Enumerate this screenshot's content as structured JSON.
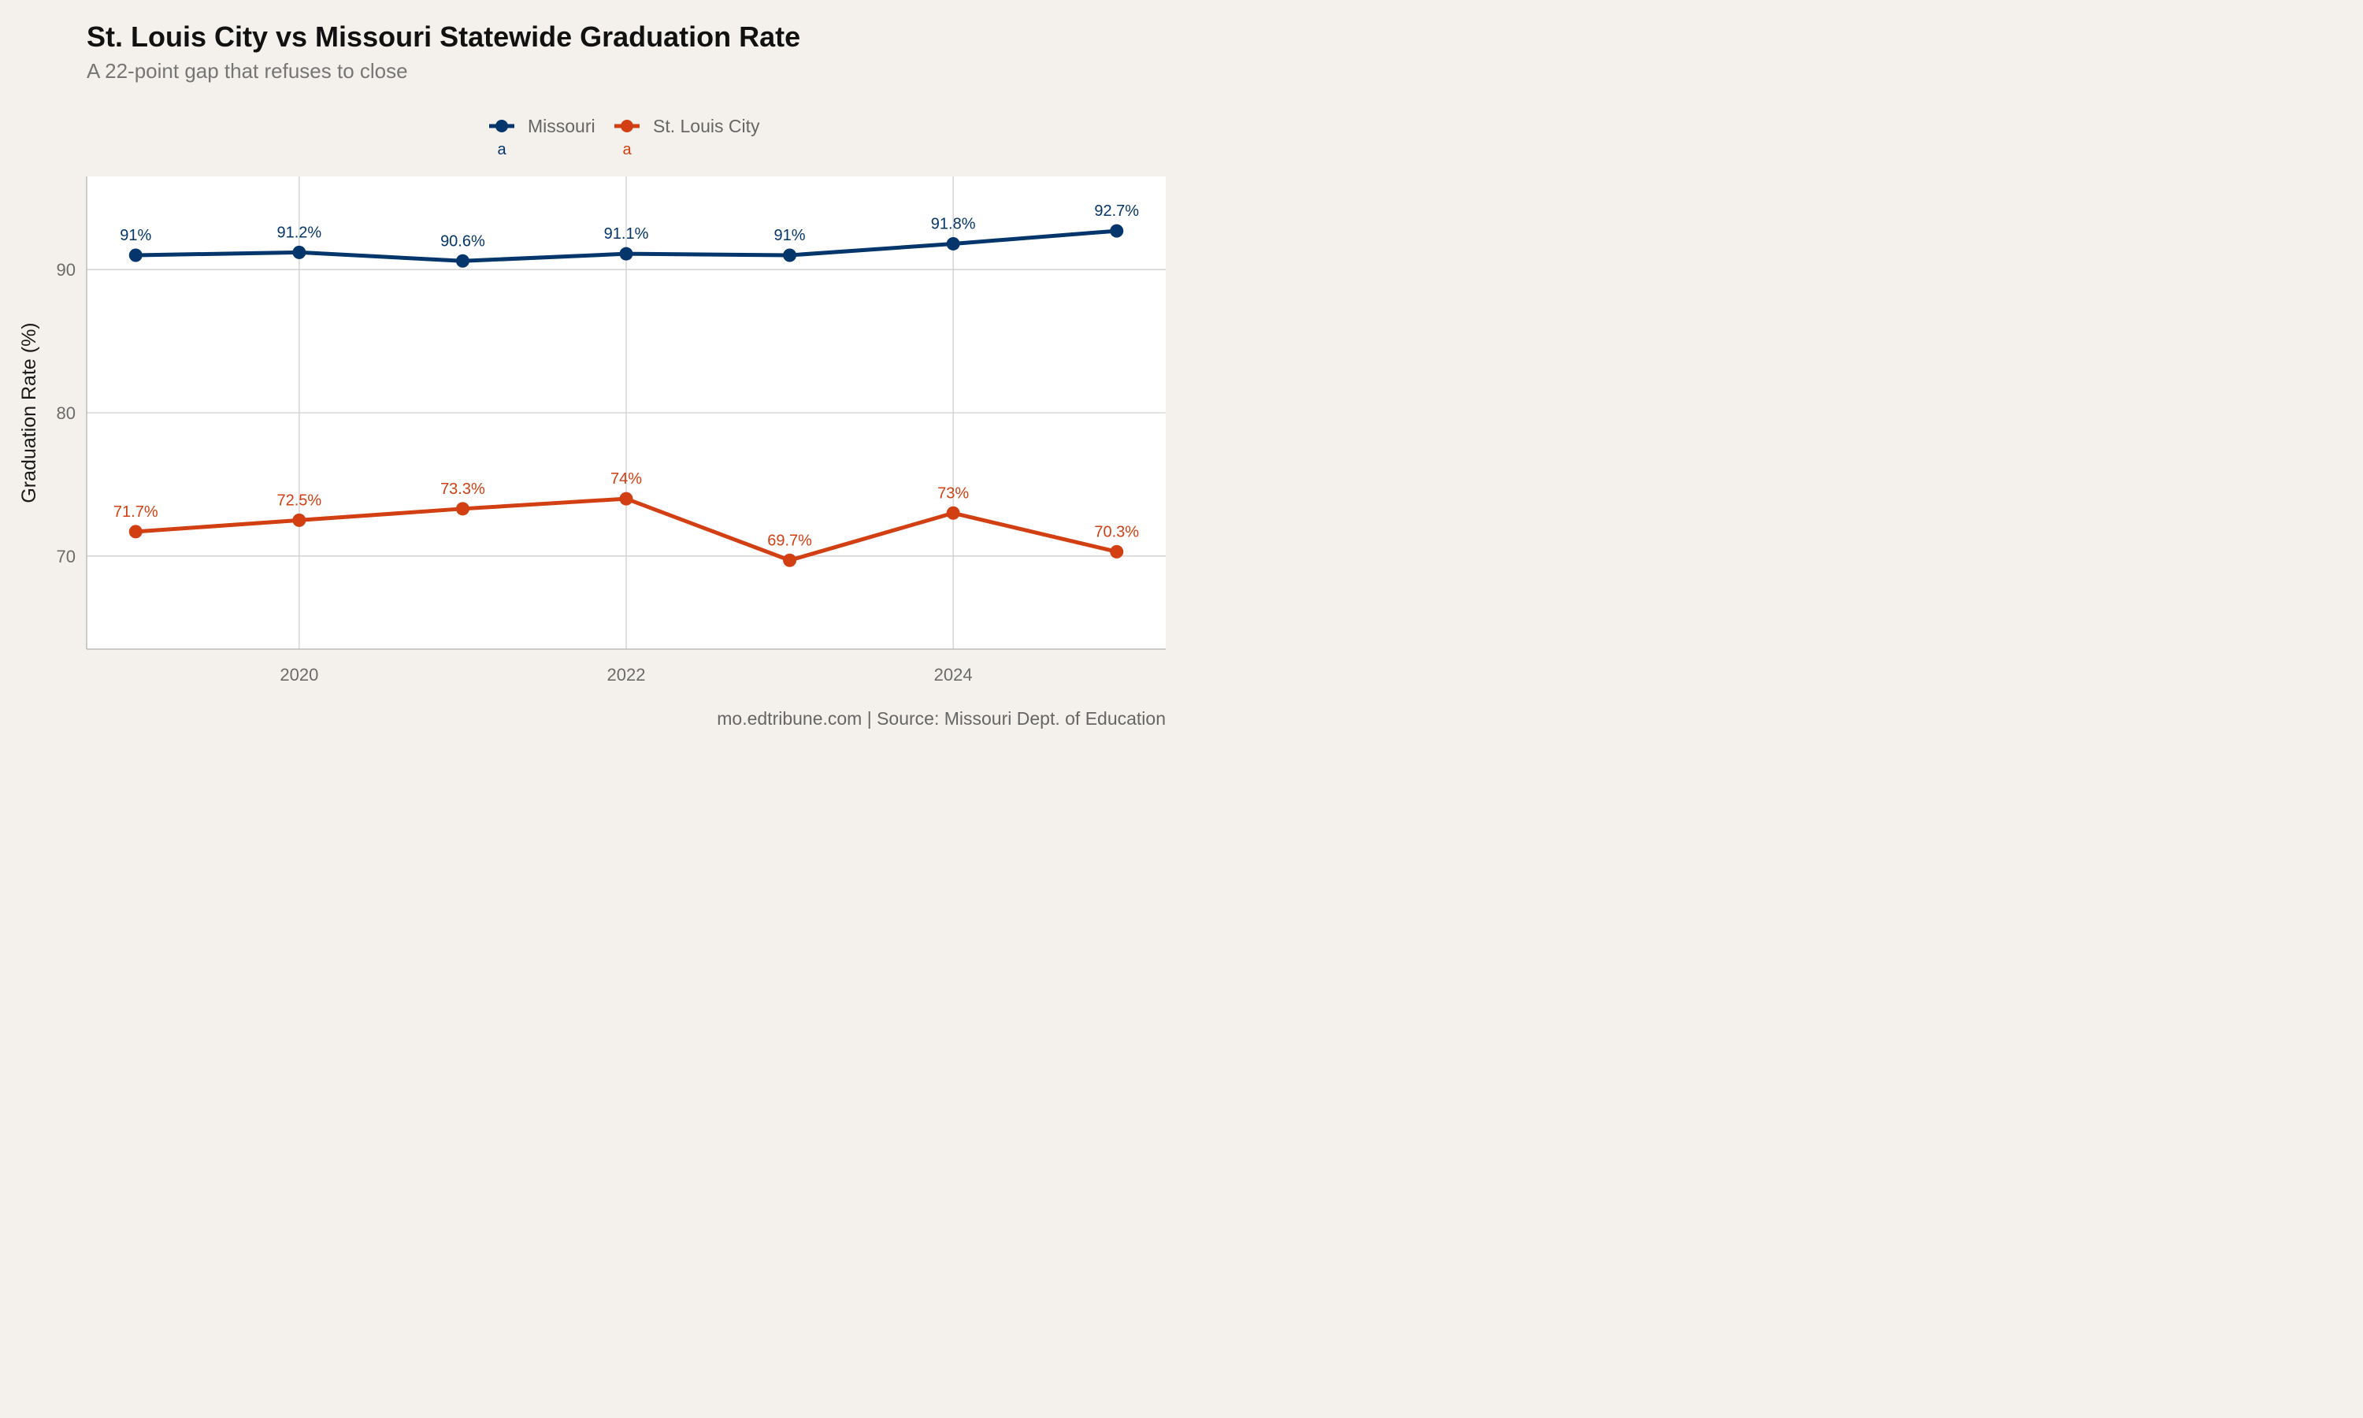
{
  "chart_data": {
    "type": "line",
    "title": "St. Louis City vs Missouri Statewide Graduation Rate",
    "subtitle": "A 22-point gap that refuses to close",
    "xlabel": "",
    "ylabel": "Graduation Rate (%)",
    "caption": "mo.edtribune.com | Source: Missouri Dept. of Education",
    "x": [
      2019,
      2020,
      2021,
      2022,
      2023,
      2024,
      2025
    ],
    "xticks": [
      2020,
      2022,
      2024
    ],
    "yticks": [
      70,
      80,
      90
    ],
    "xlim": [
      2018.7,
      2025.3
    ],
    "ylim": [
      63.5,
      96.5
    ],
    "grid": true,
    "legend_position": "top",
    "series": [
      {
        "name": "Missouri",
        "color": "#04356B",
        "legend_key_label": "a",
        "values": [
          91.0,
          91.2,
          90.6,
          91.1,
          91.0,
          91.8,
          92.7
        ],
        "labels": [
          "91%",
          "91.2%",
          "90.6%",
          "91.1%",
          "91%",
          "91.8%",
          "92.7%"
        ]
      },
      {
        "name": "St. Louis City",
        "color": "#D13F12",
        "legend_key_label": "a",
        "values": [
          71.7,
          72.5,
          73.3,
          74.0,
          69.7,
          73.0,
          70.3
        ],
        "labels": [
          "71.7%",
          "72.5%",
          "73.3%",
          "74%",
          "69.7%",
          "73%",
          "70.3%"
        ]
      }
    ]
  }
}
